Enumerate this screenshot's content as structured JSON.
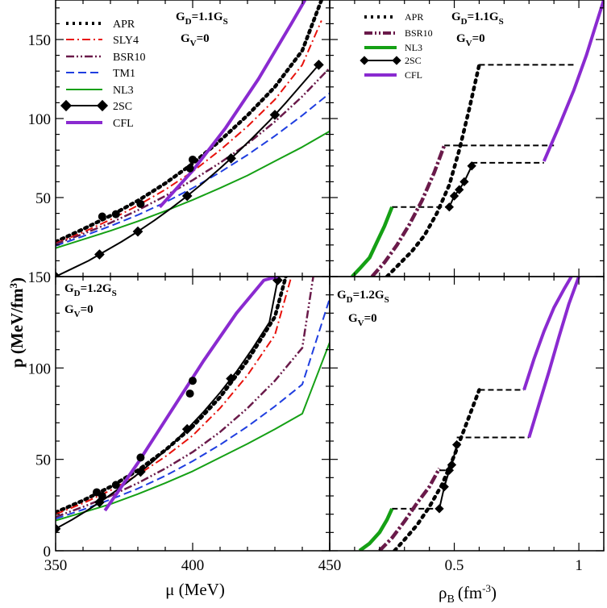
{
  "chart_data": {
    "type": "line",
    "ylabel": "p (MeV/fm³)",
    "colors": {
      "APR": "#000000",
      "SLY4": "#e8120c",
      "BSR10": "#6a1a4a",
      "TM1": "#1f3ee0",
      "NL3": "#15a015",
      "2SC": "#000000",
      "CFL": "#8a2ad0"
    },
    "panels": [
      {
        "id": "top-left",
        "annotation": [
          "G_D=1.1G_S",
          "G_V=0"
        ],
        "xlim": [
          350,
          450
        ],
        "ylim": [
          0,
          175
        ],
        "yticks": [
          50,
          100,
          150
        ],
        "legend": [
          "APR",
          "SLY4",
          "BSR10",
          "TM1",
          "NL3",
          "2SC",
          "CFL"
        ],
        "series": [
          {
            "name": "APR",
            "x": [
              350,
              360,
              370,
              380,
              390,
              400,
              410,
              420,
              430,
              440,
              447
            ],
            "y": [
              22,
              30,
              38.5,
              48,
              59,
              71.5,
              86,
              102,
              120,
              143,
              175
            ]
          },
          {
            "name": "SLY4",
            "x": [
              350,
              360,
              370,
              380,
              390,
              400,
              410,
              420,
              430,
              440,
              447
            ],
            "y": [
              21,
              28,
              36,
              45,
              55,
              66.5,
              80,
              95,
              112,
              134,
              162
            ]
          },
          {
            "name": "BSR10",
            "x": [
              350,
              360,
              370,
              380,
              390,
              400,
              410,
              420,
              430,
              440,
              450
            ],
            "y": [
              20.5,
              27,
              34,
              42,
              51,
              61,
              72,
              84,
              98,
              114,
              132
            ]
          },
          {
            "name": "TM1",
            "x": [
              350,
              360,
              370,
              380,
              390,
              400,
              410,
              420,
              430,
              440,
              450
            ],
            "y": [
              19.5,
              25.5,
              32,
              39,
              47,
              56,
              66,
              77,
              89,
              102,
              116
            ]
          },
          {
            "name": "NL3",
            "x": [
              350,
              360,
              370,
              380,
              390,
              400,
              410,
              420,
              430,
              440,
              450
            ],
            "y": [
              18,
              23.5,
              29,
              35,
              41.5,
              48.5,
              56,
              64,
              73,
              82,
              92
            ]
          },
          {
            "name": "2SC",
            "x": [
              350,
              356,
              362,
              368,
              374,
              380,
              386,
              392,
              398,
              404,
              410,
              416,
              422,
              428,
              434,
              440,
              446
            ],
            "y": [
              0,
              5,
              10,
              16,
              22,
              28.5,
              35.5,
              43,
              51,
              59.5,
              68.5,
              78,
              88,
              98.5,
              110,
              122,
              134
            ],
            "marker_x": [
              350,
              366,
              380,
              398,
              414,
              430,
              446
            ]
          },
          {
            "name": "CFL",
            "x": [
              388,
              400,
              412,
              424,
              436,
              441
            ],
            "y": [
              44,
              67,
              94,
              125,
              160,
              175
            ]
          }
        ],
        "dots": {
          "x": [
            367,
            372,
            381,
            399,
            400
          ],
          "y": [
            38,
            39.5,
            46,
            68.5,
            74
          ]
        }
      },
      {
        "id": "top-right",
        "annotation": [
          "G_D=1.1G_S",
          "G_V=0"
        ],
        "xlim": [
          0,
          1.1
        ],
        "ylim": [
          0,
          175
        ],
        "legend": [
          "APR",
          "BSR10",
          "NL3",
          "2SC",
          "CFL"
        ],
        "series": [
          {
            "name": "NL3",
            "x": [
              0.09,
              0.12,
              0.16,
              0.19,
              0.22,
              0.25
            ],
            "y": [
              0,
              5,
              12,
              22,
              32,
              44
            ]
          },
          {
            "name": "BSR10",
            "x": [
              0.17,
              0.22,
              0.27,
              0.32,
              0.37,
              0.42,
              0.46
            ],
            "y": [
              0,
              9,
              20,
              33,
              48,
              66,
              83
            ]
          },
          {
            "name": "APR",
            "x": [
              0.23,
              0.28,
              0.33,
              0.38,
              0.43,
              0.48,
              0.52,
              0.56,
              0.6
            ],
            "y": [
              0,
              8,
              16,
              26,
              40,
              58,
              80,
              106,
              134
            ]
          },
          {
            "name": "2SC",
            "x": [
              0.48,
              0.5,
              0.52,
              0.54,
              0.57
            ],
            "y": [
              44,
              51,
              55,
              60,
              70
            ]
          },
          {
            "name": "CFL_a",
            "x": [
              0.86,
              0.92,
              0.98,
              1.03,
              1.06,
              1.08,
              1.1
            ],
            "y": [
              73,
              95,
              118,
              140,
              155,
              165,
              175
            ]
          }
        ],
        "markers_2sc": {
          "x": [
            0.48,
            0.5,
            0.52,
            0.54,
            0.57
          ],
          "y": [
            44,
            51,
            55,
            60,
            70
          ]
        },
        "plateaus": [
          {
            "x1": 0.25,
            "x2": 0.48,
            "y": 44
          },
          {
            "x1": 0.57,
            "x2": 0.86,
            "y": 72
          },
          {
            "x1": 0.46,
            "x2": 0.9,
            "y": 83
          },
          {
            "x1": 0.6,
            "x2": 0.98,
            "y": 134
          }
        ]
      },
      {
        "id": "bottom-left",
        "annotation": [
          "G_D=1.2G_S",
          "G_V=0"
        ],
        "xlim": [
          350,
          450
        ],
        "ylim": [
          0,
          150
        ],
        "xticks": [
          350,
          400,
          450
        ],
        "yticks": [
          0,
          50,
          100,
          150
        ],
        "series": [
          {
            "name": "APR",
            "x": [
              350,
              360,
              370,
              380,
              390,
              400,
              410,
              420,
              430,
              434
            ],
            "y": [
              21,
              27.5,
              35,
              44,
              55,
              68,
              84,
              104,
              128,
              150
            ]
          },
          {
            "name": "SLY4",
            "x": [
              350,
              360,
              370,
              380,
              390,
              400,
              410,
              420,
              430,
              436
            ],
            "y": [
              20,
              26,
              33,
              41.5,
              51.5,
              63,
              78,
              96,
              118,
              150
            ]
          },
          {
            "name": "BSR10",
            "x": [
              350,
              360,
              370,
              380,
              390,
              400,
              410,
              420,
              430,
              440,
              444
            ],
            "y": [
              18.5,
              24,
              30,
              37,
              45,
              54,
              65,
              78,
              93,
              111,
              150
            ]
          },
          {
            "name": "TM1",
            "x": [
              350,
              360,
              370,
              380,
              390,
              400,
              410,
              420,
              430,
              440,
              450
            ],
            "y": [
              17.5,
              22.5,
              28,
              34,
              41,
              49,
              58,
              68,
              79,
              91,
              138
            ]
          },
          {
            "name": "NL3",
            "x": [
              350,
              360,
              370,
              380,
              390,
              400,
              410,
              420,
              430,
              440,
              450
            ],
            "y": [
              16.5,
              21,
              25.5,
              31,
              37,
              43.5,
              51,
              58.5,
              66.5,
              75,
              114
            ]
          },
          {
            "name": "2SC",
            "x": [
              350,
              356,
              362,
              368,
              374,
              380,
              386,
              392,
              398,
              404,
              410,
              416,
              422,
              428,
              431
            ],
            "y": [
              12,
              17,
              22.5,
              28.5,
              35,
              42,
              49.5,
              57.5,
              66.5,
              76,
              86.5,
              98,
              111,
              125,
              148
            ],
            "marker_x": [
              350,
              366,
              381,
              398,
              414,
              431
            ]
          },
          {
            "name": "CFL",
            "x": [
              368,
              380,
              392,
              404,
              416,
              426,
              431
            ],
            "y": [
              22,
              48,
              76,
              104,
              130,
              148,
              150
            ]
          }
        ],
        "dots": {
          "x": [
            365,
            367,
            372,
            381,
            399,
            400
          ],
          "y": [
            32,
            30,
            36,
            51,
            86,
            93
          ]
        }
      },
      {
        "id": "bottom-right",
        "annotation": [
          "G_D=1.2G_S",
          "G_V=0"
        ],
        "xlim": [
          0,
          1.1
        ],
        "ylim": [
          0,
          150
        ],
        "xticks": [
          0.5,
          1
        ],
        "series": [
          {
            "name": "NL3",
            "x": [
              0.12,
              0.16,
              0.2,
              0.23,
              0.25
            ],
            "y": [
              0,
              4,
              10,
              17,
              23
            ]
          },
          {
            "name": "BSR10",
            "x": [
              0.2,
              0.25,
              0.3,
              0.35,
              0.4,
              0.44
            ],
            "y": [
              0,
              7,
              16,
              26,
              35,
              45
            ]
          },
          {
            "name": "APR",
            "x": [
              0.26,
              0.3,
              0.35,
              0.4,
              0.45,
              0.5,
              0.55,
              0.6
            ],
            "y": [
              0,
              6,
              14,
              24,
              36,
              52,
              70,
              88
            ]
          },
          {
            "name": "2SC",
            "x": [
              0.44,
              0.46,
              0.48,
              0.49,
              0.51
            ],
            "y": [
              23,
              35,
              44,
              47,
              58
            ]
          },
          {
            "name": "CFL_a",
            "x": [
              0.8,
              0.84,
              0.88,
              0.92,
              0.96,
              1.0
            ],
            "y": [
              62,
              80,
              98,
              117,
              135,
              150
            ]
          },
          {
            "name": "CFL_b",
            "x": [
              0.78,
              0.82,
              0.86,
              0.9,
              0.94,
              0.97
            ],
            "y": [
              88,
              105,
              120,
              133,
              143,
              150
            ]
          }
        ],
        "markers_2sc": {
          "x": [
            0.44,
            0.46,
            0.48,
            0.49,
            0.51
          ],
          "y": [
            23,
            35,
            44,
            47,
            58
          ]
        },
        "plateaus": [
          {
            "x1": 0.25,
            "x2": 0.44,
            "y": 23
          },
          {
            "x1": 0.44,
            "x2": 0.49,
            "y": 44
          },
          {
            "x1": 0.51,
            "x2": 0.8,
            "y": 62
          },
          {
            "x1": 0.6,
            "x2": 0.78,
            "y": 88
          }
        ]
      }
    ],
    "xlabel_left": "μ (MeV)",
    "xlabel_right": "ρ_B (fm⁻³)"
  },
  "labels": {
    "left_x_ticks": [
      "350",
      "400",
      "450"
    ],
    "right_x_ticks": [
      "0.5",
      "1"
    ],
    "y_ticks_top": [
      "50",
      "100",
      "150"
    ],
    "y_ticks_bottom": [
      "0",
      "50",
      "100",
      "150"
    ],
    "xlabel_left": "μ (MeV)",
    "xlabel_right_main": "ρ",
    "xlabel_right_sub": "B",
    "xlabel_right_unit": "(fm",
    "xlabel_right_exp": "-3",
    "xlabel_right_close": ")",
    "ylabel_main": "p (MeV/fm",
    "ylabel_exp": "3",
    "ylabel_close": ")",
    "ann_G": "G",
    "ann_D": "D",
    "ann_eq11": "=1.1G",
    "ann_eq12": "=1.2G",
    "ann_S": "S",
    "ann_V": "V",
    "ann_zero": "=0",
    "legend_left": [
      "APR",
      "SLY4",
      "BSR10",
      "TM1",
      "NL3",
      "2SC",
      "CFL"
    ],
    "legend_right": [
      "APR",
      "BSR10",
      "NL3",
      "2SC",
      "CFL"
    ]
  }
}
